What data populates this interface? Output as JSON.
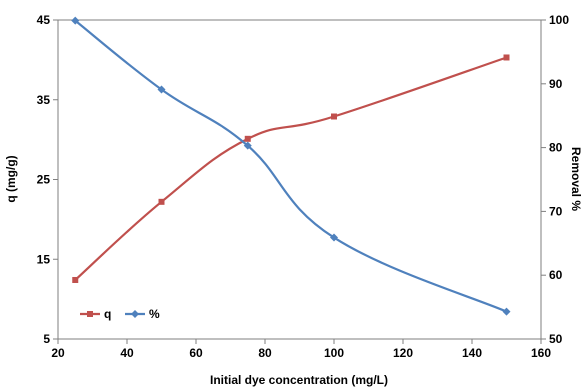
{
  "chart_data": {
    "type": "line",
    "xlabel": "Initial dye concentration (mg/L)",
    "ylabel": "q (mg/g)",
    "y2label": "Removal %",
    "xlim": [
      20,
      160
    ],
    "ylim": [
      5,
      45
    ],
    "y2lim": [
      50,
      100
    ],
    "x_ticks": [
      "20",
      "40",
      "60",
      "80",
      "100",
      "120",
      "140",
      "160"
    ],
    "y_ticks": [
      "5",
      "15",
      "25",
      "35",
      "45"
    ],
    "y2_ticks": [
      "50",
      "60",
      "70",
      "80",
      "90",
      "100"
    ],
    "grid": false,
    "legend_position": "bottom-left",
    "series": [
      {
        "name": "q",
        "axis": "left",
        "color": "#C0504D",
        "marker": "square",
        "x": [
          25,
          50,
          75,
          100,
          150
        ],
        "y": [
          12.4,
          22.2,
          30.1,
          32.9,
          40.3
        ]
      },
      {
        "name": "%",
        "axis": "right",
        "color": "#4F81BD",
        "marker": "diamond",
        "x": [
          25,
          50,
          75,
          100,
          150
        ],
        "y": [
          99.9,
          89.1,
          80.3,
          65.9,
          54.3
        ]
      }
    ]
  }
}
